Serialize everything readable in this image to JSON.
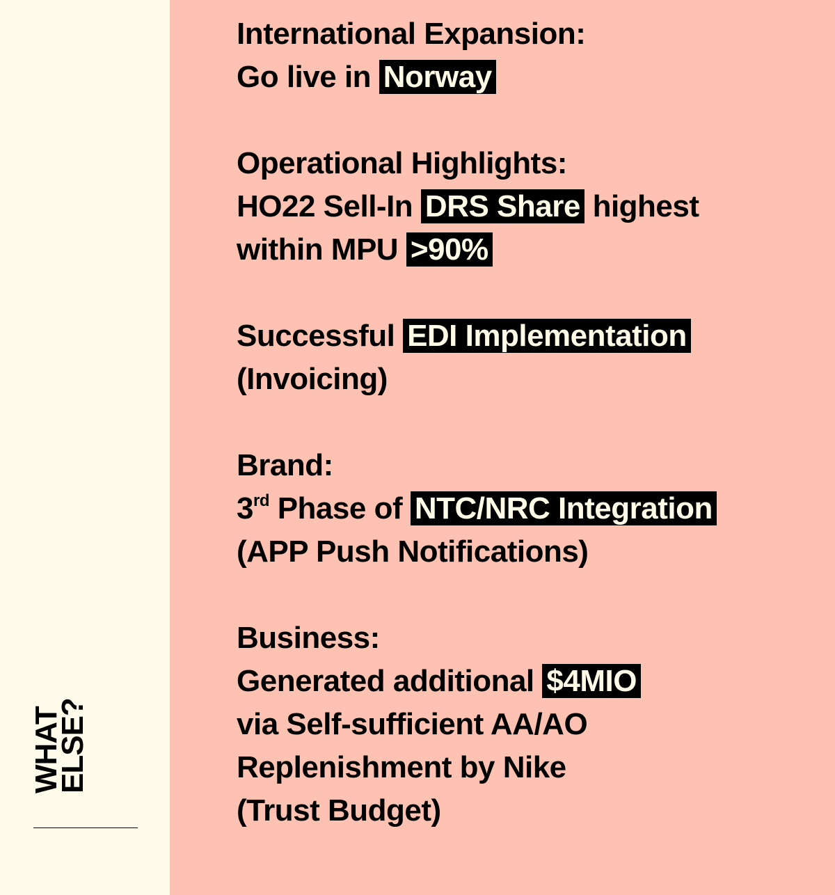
{
  "sidebar": {
    "title_line1": "WHAT",
    "title_line2": "ELSE?"
  },
  "sections": {
    "international": {
      "heading": "International Expansion:",
      "pre": "Go live in ",
      "highlight": "Norway"
    },
    "operational": {
      "heading": "Operational Highlights:",
      "pre": "HO22 Sell-In ",
      "highlight1": "DRS Share",
      "mid": " highest",
      "line3_pre": "within MPU ",
      "highlight2": ">90%"
    },
    "edi": {
      "pre": "Successful ",
      "highlight": "EDI Implementation",
      "line2": "(Invoicing)"
    },
    "brand": {
      "heading": "Brand:",
      "ordinal_num": "3",
      "ordinal_suffix": "rd",
      "pre": " Phase of ",
      "highlight": "NTC/NRC Integration",
      "line3": "(APP Push Notifications)"
    },
    "business": {
      "heading": "Business:",
      "pre": "Generated additional ",
      "highlight": "$4MIO",
      "line3": "via Self-sufficient AA/AO",
      "line4": "Replenishment by Nike",
      "line5": "(Trust Budget)"
    }
  },
  "colors": {
    "sidebar_bg": "#fefbeb",
    "main_bg": "#fdc2b2",
    "highlight_bg": "#000000",
    "highlight_text": "#fffbe6"
  }
}
